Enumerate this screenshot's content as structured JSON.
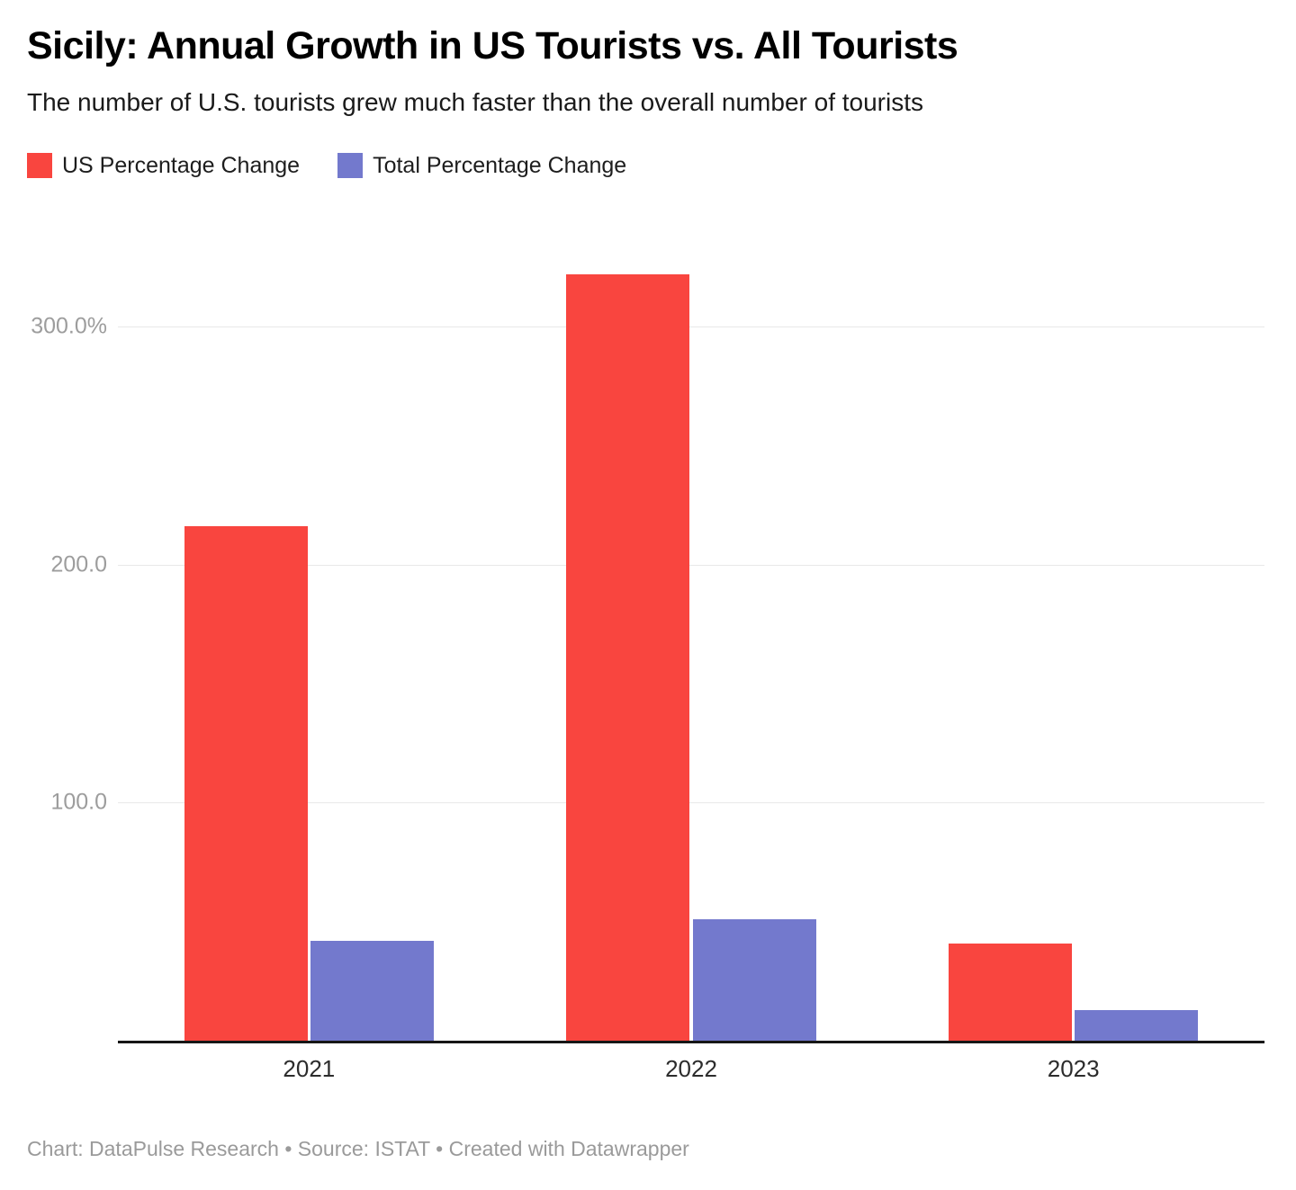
{
  "header": {
    "title": "Sicily: Annual Growth in US Tourists vs. All Tourists",
    "subtitle": "The number of U.S. tourists grew much faster than the overall number of tourists"
  },
  "legend": {
    "items": [
      {
        "label": "US Percentage Change",
        "color": "#f9453f"
      },
      {
        "label": "Total Percentage Change",
        "color": "#7379cd"
      }
    ]
  },
  "chart_data": {
    "type": "bar",
    "title": "Sicily: Annual Growth in US Tourists vs. All Tourists",
    "subtitle": "The number of U.S. tourists grew much faster than the overall number of tourists",
    "categories": [
      "2021",
      "2022",
      "2023"
    ],
    "series": [
      {
        "name": "US Percentage Change",
        "color": "#f9453f",
        "values": [
          216,
          322,
          41
        ]
      },
      {
        "name": "Total Percentage Change",
        "color": "#7379cd",
        "values": [
          42,
          51,
          13
        ]
      }
    ],
    "xlabel": "",
    "ylabel": "",
    "ylim": [
      0,
      325
    ],
    "y_ticks": [
      {
        "value": 100,
        "label": "100.0"
      },
      {
        "value": 200,
        "label": "200.0"
      },
      {
        "value": 300,
        "label": "300.0%"
      }
    ],
    "grid": true,
    "legend_position": "top-left"
  },
  "footer": {
    "text": "Chart: DataPulse Research • Source: ISTAT • Created with Datawrapper"
  }
}
